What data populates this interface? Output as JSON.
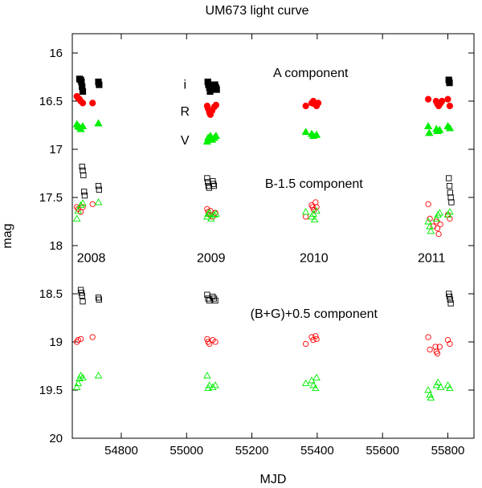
{
  "chart_data": {
    "type": "scatter",
    "title": "UM673 light curve",
    "xlabel": "MJD",
    "ylabel": "mag",
    "xlim": [
      54650,
      55880
    ],
    "ylim": [
      15.8,
      20
    ],
    "y_inverted": true,
    "grid": false,
    "x_ticks": [
      54800,
      55000,
      55200,
      55400,
      55600,
      55800
    ],
    "y_ticks": [
      16,
      16.5,
      17,
      17.5,
      18,
      18.5,
      19,
      19.5,
      20
    ],
    "colors": {
      "i": "#000000",
      "R": "#ff0000",
      "V": "#00ee00"
    },
    "band_labels": [
      {
        "text": "i",
        "mjd": 54995,
        "mag": 16.32
      },
      {
        "text": "R",
        "mjd": 54995,
        "mag": 16.6
      },
      {
        "text": "V",
        "mjd": 54995,
        "mag": 16.9
      }
    ],
    "component_labels": [
      {
        "text": "A component",
        "mjd": 55380,
        "mag": 16.2
      },
      {
        "text": "B-1.5 component",
        "mjd": 55390,
        "mag": 17.35
      },
      {
        "text": "(B+G)+0.5 component",
        "mjd": 55390,
        "mag": 18.7
      }
    ],
    "year_labels": [
      {
        "text": "2008",
        "mjd": 54708,
        "mag": 18.12
      },
      {
        "text": "2009",
        "mjd": 55075,
        "mag": 18.12
      },
      {
        "text": "2010",
        "mjd": 55390,
        "mag": 18.12
      },
      {
        "text": "2011",
        "mjd": 55750,
        "mag": 18.12
      }
    ],
    "series": [
      {
        "name": "A i",
        "band": "i",
        "marker": "square",
        "filled": true,
        "points": [
          [
            54672,
            16.27
          ],
          [
            54676,
            16.28
          ],
          [
            54678,
            16.3
          ],
          [
            54680,
            16.35
          ],
          [
            54682,
            16.4
          ],
          [
            54730,
            16.3
          ],
          [
            54732,
            16.33
          ],
          [
            55065,
            16.3
          ],
          [
            55067,
            16.33
          ],
          [
            55070,
            16.36
          ],
          [
            55072,
            16.4
          ],
          [
            55087,
            16.33
          ],
          [
            55090,
            16.36
          ],
          [
            55092,
            16.38
          ],
          [
            55803,
            16.28
          ],
          [
            55805,
            16.31
          ]
        ]
      },
      {
        "name": "A R",
        "band": "R",
        "marker": "circle",
        "filled": true,
        "points": [
          [
            54664,
            16.45
          ],
          [
            54668,
            16.47
          ],
          [
            54672,
            16.48
          ],
          [
            54676,
            16.5
          ],
          [
            54682,
            16.52
          ],
          [
            54712,
            16.52
          ],
          [
            55063,
            16.55
          ],
          [
            55066,
            16.58
          ],
          [
            55070,
            16.62
          ],
          [
            55073,
            16.64
          ],
          [
            55078,
            16.6
          ],
          [
            55085,
            16.56
          ],
          [
            55090,
            16.54
          ],
          [
            55365,
            16.55
          ],
          [
            55383,
            16.52
          ],
          [
            55388,
            16.5
          ],
          [
            55392,
            16.53
          ],
          [
            55398,
            16.55
          ],
          [
            55403,
            16.52
          ],
          [
            55740,
            16.48
          ],
          [
            55764,
            16.5
          ],
          [
            55768,
            16.53
          ],
          [
            55772,
            16.55
          ],
          [
            55778,
            16.52
          ],
          [
            55782,
            16.5
          ],
          [
            55800,
            16.48
          ],
          [
            55806,
            16.55
          ]
        ]
      },
      {
        "name": "A V",
        "band": "V",
        "marker": "triangle",
        "filled": true,
        "points": [
          [
            54664,
            16.74
          ],
          [
            54668,
            16.76
          ],
          [
            54672,
            16.77
          ],
          [
            54676,
            16.79
          ],
          [
            54682,
            16.76
          ],
          [
            54730,
            16.73
          ],
          [
            55063,
            16.92
          ],
          [
            55066,
            16.88
          ],
          [
            55070,
            16.9
          ],
          [
            55073,
            16.86
          ],
          [
            55078,
            16.9
          ],
          [
            55085,
            16.88
          ],
          [
            55090,
            16.86
          ],
          [
            55365,
            16.82
          ],
          [
            55383,
            16.84
          ],
          [
            55388,
            16.86
          ],
          [
            55398,
            16.85
          ],
          [
            55740,
            16.76
          ],
          [
            55743,
            16.83
          ],
          [
            55765,
            16.79
          ],
          [
            55768,
            16.81
          ],
          [
            55775,
            16.8
          ],
          [
            55800,
            16.76
          ],
          [
            55806,
            16.78
          ]
        ]
      },
      {
        "name": "B-1.5 i",
        "band": "i",
        "marker": "square",
        "filled": false,
        "points": [
          [
            54680,
            17.18
          ],
          [
            54682,
            17.22
          ],
          [
            54684,
            17.27
          ],
          [
            54686,
            17.44
          ],
          [
            54688,
            17.48
          ],
          [
            54730,
            17.38
          ],
          [
            54732,
            17.42
          ],
          [
            55063,
            17.3
          ],
          [
            55065,
            17.34
          ],
          [
            55067,
            17.38
          ],
          [
            55069,
            17.4
          ],
          [
            55080,
            17.33
          ],
          [
            55082,
            17.36
          ],
          [
            55084,
            17.38
          ],
          [
            55803,
            17.3
          ],
          [
            55805,
            17.38
          ],
          [
            55807,
            17.45
          ],
          [
            55809,
            17.5
          ],
          [
            55811,
            17.55
          ]
        ]
      },
      {
        "name": "B-1.5 R",
        "band": "R",
        "marker": "circle",
        "filled": false,
        "points": [
          [
            54664,
            17.6
          ],
          [
            54668,
            17.62
          ],
          [
            54676,
            17.65
          ],
          [
            54682,
            17.6
          ],
          [
            54712,
            17.57
          ],
          [
            55063,
            17.62
          ],
          [
            55066,
            17.65
          ],
          [
            55070,
            17.68
          ],
          [
            55073,
            17.64
          ],
          [
            55080,
            17.7
          ],
          [
            55088,
            17.66
          ],
          [
            55365,
            17.7
          ],
          [
            55383,
            17.58
          ],
          [
            55386,
            17.6
          ],
          [
            55390,
            17.63
          ],
          [
            55395,
            17.55
          ],
          [
            55398,
            17.6
          ],
          [
            55740,
            17.57
          ],
          [
            55745,
            17.72
          ],
          [
            55755,
            17.8
          ],
          [
            55765,
            17.75
          ],
          [
            55768,
            17.82
          ],
          [
            55772,
            17.88
          ],
          [
            55777,
            17.78
          ],
          [
            55800,
            17.68
          ],
          [
            55806,
            17.72
          ]
        ]
      },
      {
        "name": "B-1.5 V",
        "band": "V",
        "marker": "triangle",
        "filled": false,
        "points": [
          [
            54664,
            17.72
          ],
          [
            54668,
            17.64
          ],
          [
            54676,
            17.58
          ],
          [
            54682,
            17.56
          ],
          [
            54730,
            17.55
          ],
          [
            55063,
            17.7
          ],
          [
            55066,
            17.67
          ],
          [
            55070,
            17.66
          ],
          [
            55075,
            17.72
          ],
          [
            55085,
            17.68
          ],
          [
            55090,
            17.67
          ],
          [
            55365,
            17.65
          ],
          [
            55383,
            17.7
          ],
          [
            55388,
            17.67
          ],
          [
            55392,
            17.73
          ],
          [
            55398,
            17.64
          ],
          [
            55740,
            17.75
          ],
          [
            55745,
            17.8
          ],
          [
            55748,
            17.85
          ],
          [
            55765,
            17.72
          ],
          [
            55770,
            17.68
          ],
          [
            55775,
            17.66
          ],
          [
            55800,
            17.68
          ],
          [
            55806,
            17.65
          ]
        ]
      },
      {
        "name": "(B+G)+0.5 i",
        "band": "i",
        "marker": "square",
        "filled": false,
        "points": [
          [
            54676,
            18.46
          ],
          [
            54678,
            18.49
          ],
          [
            54680,
            18.52
          ],
          [
            54682,
            18.58
          ],
          [
            54730,
            18.54
          ],
          [
            54732,
            18.56
          ],
          [
            55063,
            18.51
          ],
          [
            55066,
            18.55
          ],
          [
            55070,
            18.57
          ],
          [
            55080,
            18.53
          ],
          [
            55084,
            18.55
          ],
          [
            55088,
            18.57
          ],
          [
            55803,
            18.5
          ],
          [
            55805,
            18.53
          ],
          [
            55807,
            18.56
          ],
          [
            55809,
            18.6
          ]
        ]
      },
      {
        "name": "(B+G)+0.5 R",
        "band": "R",
        "marker": "circle",
        "filled": false,
        "points": [
          [
            54664,
            19.0
          ],
          [
            54668,
            18.98
          ],
          [
            54676,
            18.97
          ],
          [
            54712,
            18.95
          ],
          [
            55063,
            18.97
          ],
          [
            55066,
            19.0
          ],
          [
            55070,
            19.02
          ],
          [
            55080,
            18.98
          ],
          [
            55088,
            19.0
          ],
          [
            55365,
            19.02
          ],
          [
            55383,
            18.95
          ],
          [
            55388,
            18.98
          ],
          [
            55395,
            18.94
          ],
          [
            55398,
            18.97
          ],
          [
            55740,
            18.95
          ],
          [
            55745,
            19.08
          ],
          [
            55762,
            19.05
          ],
          [
            55765,
            19.1
          ],
          [
            55768,
            19.12
          ],
          [
            55775,
            19.05
          ],
          [
            55800,
            18.98
          ],
          [
            55806,
            19.02
          ]
        ]
      },
      {
        "name": "(B+G)+0.5 V",
        "band": "V",
        "marker": "triangle",
        "filled": false,
        "points": [
          [
            54664,
            19.47
          ],
          [
            54668,
            19.43
          ],
          [
            54672,
            19.38
          ],
          [
            54676,
            19.35
          ],
          [
            54682,
            19.37
          ],
          [
            54730,
            19.35
          ],
          [
            55063,
            19.35
          ],
          [
            55066,
            19.48
          ],
          [
            55070,
            19.45
          ],
          [
            55080,
            19.47
          ],
          [
            55088,
            19.45
          ],
          [
            55365,
            19.43
          ],
          [
            55383,
            19.4
          ],
          [
            55388,
            19.45
          ],
          [
            55395,
            19.48
          ],
          [
            55398,
            19.37
          ],
          [
            55740,
            19.5
          ],
          [
            55745,
            19.55
          ],
          [
            55748,
            19.58
          ],
          [
            55765,
            19.45
          ],
          [
            55770,
            19.42
          ],
          [
            55778,
            19.47
          ],
          [
            55800,
            19.45
          ],
          [
            55806,
            19.48
          ]
        ]
      }
    ]
  }
}
